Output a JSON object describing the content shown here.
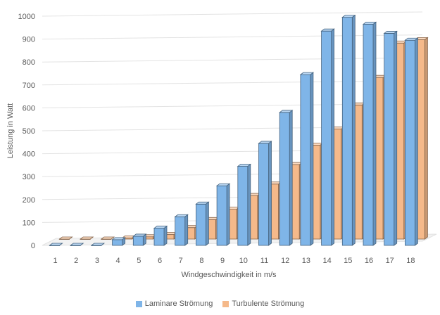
{
  "chart_data": {
    "type": "bar",
    "three_d": true,
    "title": "",
    "xlabel": "Windgeschwindigkeit in m/s",
    "ylabel": "Leistung in Watt",
    "ylim": [
      0,
      1000
    ],
    "yticks": [
      0,
      100,
      200,
      300,
      400,
      500,
      600,
      700,
      800,
      900,
      1000
    ],
    "categories": [
      "1",
      "2",
      "3",
      "4",
      "5",
      "6",
      "7",
      "8",
      "9",
      "10",
      "11",
      "12",
      "13",
      "14",
      "15",
      "16",
      "17",
      "18"
    ],
    "series": [
      {
        "name": "Laminare Strömung",
        "color": "#7fb5e8",
        "values": [
          0,
          0,
          0,
          25,
          40,
          75,
          125,
          180,
          260,
          345,
          445,
          580,
          745,
          935,
          995,
          965,
          925,
          895
        ]
      },
      {
        "name": "Turbulente Strömung",
        "color": "#f5b98a",
        "values": [
          0,
          0,
          0,
          5,
          10,
          20,
          50,
          85,
          130,
          190,
          240,
          325,
          410,
          480,
          585,
          705,
          855,
          870
        ]
      }
    ],
    "grid": true,
    "legend_position": "bottom"
  }
}
